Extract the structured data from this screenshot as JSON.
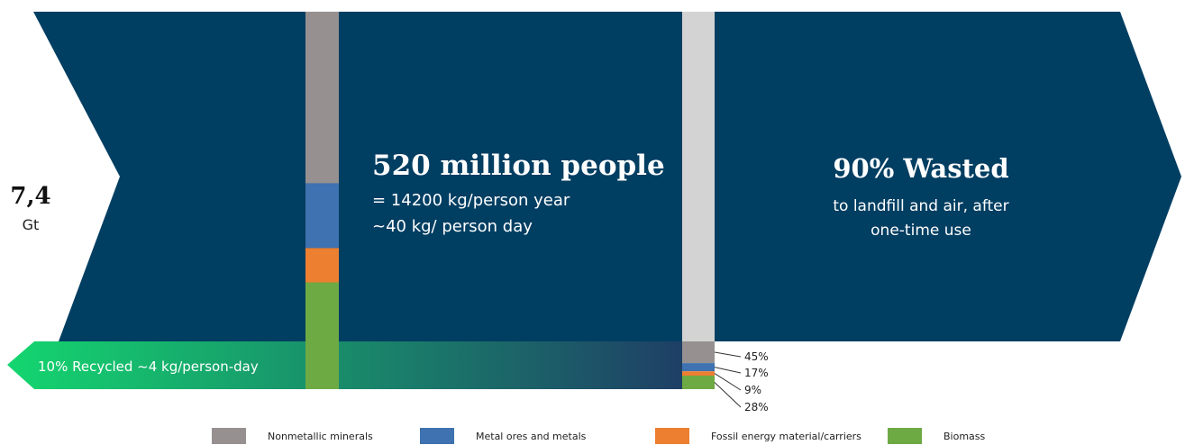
{
  "total": {
    "value": "7,4",
    "unit": "Gt"
  },
  "middle": {
    "headline": "520 million people",
    "line1": "= 14200 kg/person year",
    "line2": "~40 kg/ person day"
  },
  "right": {
    "headline": "90% Wasted",
    "line1": "to landfill and air, after",
    "line2": "one-time use"
  },
  "recycled": {
    "label": "10% Recycled ~4 kg/person-day"
  },
  "categories": [
    {
      "name": "Nonmetallic minerals",
      "color": "#969190",
      "share": 0.45,
      "label": "45%"
    },
    {
      "name": "Metal ores and metals",
      "color": "#3e72b0",
      "share": 0.17,
      "label": "17%"
    },
    {
      "name": "Fossil energy material/carriers",
      "color": "#ec7f30",
      "share": 0.09,
      "label": "9%"
    },
    {
      "name": "Biomass",
      "color": "#6eaa44",
      "share": 0.28,
      "label": "28%"
    }
  ],
  "colors": {
    "arrow": "#003e62",
    "waste_bar": "#d3d3d3",
    "recycle_start": "#14d66f",
    "recycle_end": "#1e3f66"
  }
}
